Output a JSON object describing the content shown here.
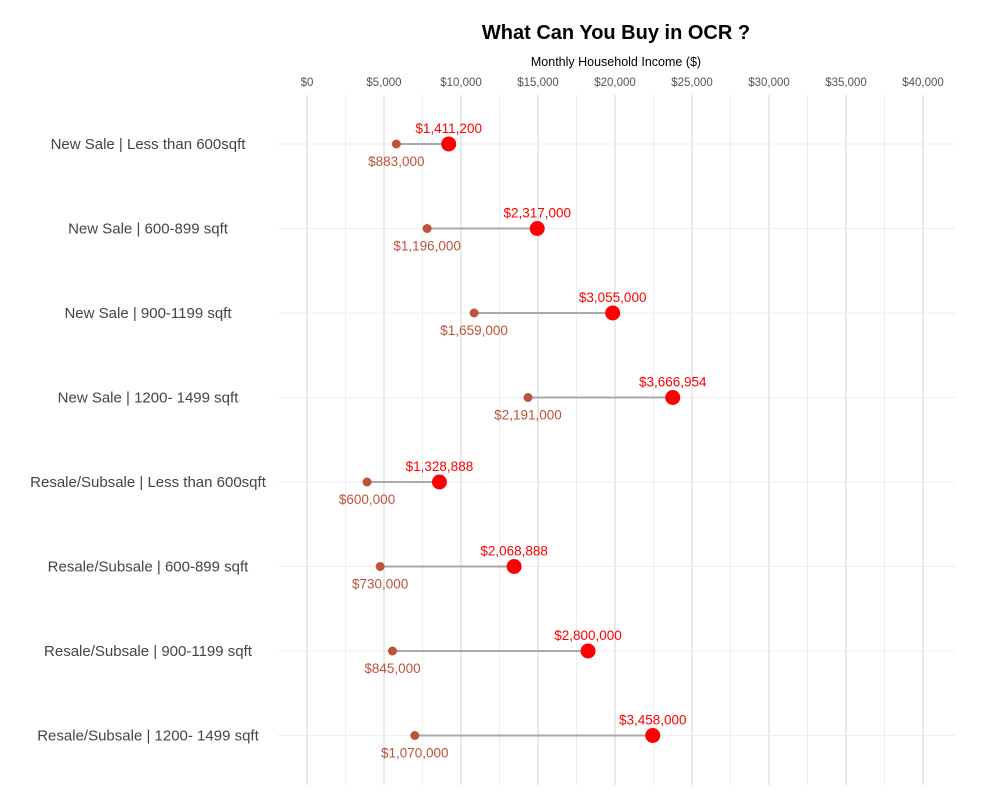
{
  "chart_data": {
    "type": "dumbbell",
    "title": "What Can You Buy in OCR ?",
    "xlabel": "Monthly Household Income ($)",
    "ylabel": "",
    "xlim": [
      0,
      40000
    ],
    "x_ticks": [
      0,
      5000,
      10000,
      15000,
      20000,
      25000,
      30000,
      35000,
      40000
    ],
    "x_tick_labels": [
      "$0",
      "$5,000",
      "$10,000",
      "$15,000",
      "$20,000",
      "$25,000",
      "$30,000",
      "$35,000",
      "$40,000"
    ],
    "grid": true,
    "categories": [
      "New Sale | Less than 600sqft",
      "New Sale | 600-899 sqft",
      "New Sale | 900-1199 sqft",
      "New Sale | 1200- 1499 sqft",
      "Resale/Subsale | Less than 600sqft",
      "Resale/Subsale | 600-899 sqft",
      "Resale/Subsale | 900-1199 sqft",
      "Resale/Subsale | 1200- 1499 sqft"
    ],
    "series": [
      {
        "role": "low",
        "color": "#c0523a",
        "values": [
          5800,
          7800,
          10850,
          14350,
          3900,
          4750,
          5550,
          7000
        ],
        "labels": [
          "$883,000",
          "$1,196,000",
          "$1,659,000",
          "$2,191,000",
          "$600,000",
          "$730,000",
          "$845,000",
          "$1,070,000"
        ]
      },
      {
        "role": "high",
        "color": "#ff0000",
        "values": [
          9200,
          14950,
          19850,
          23750,
          8600,
          13450,
          18250,
          22450
        ],
        "labels": [
          "$1,411,200",
          "$2,317,000",
          "$3,055,000",
          "$3,666,954",
          "$1,328,888",
          "$2,068,888",
          "$2,800,000",
          "$3,458,000"
        ]
      }
    ]
  },
  "colors": {
    "connector": "#a9a9a9",
    "major_grid": "#d3d3d3",
    "minor_grid": "#eeeeee"
  }
}
